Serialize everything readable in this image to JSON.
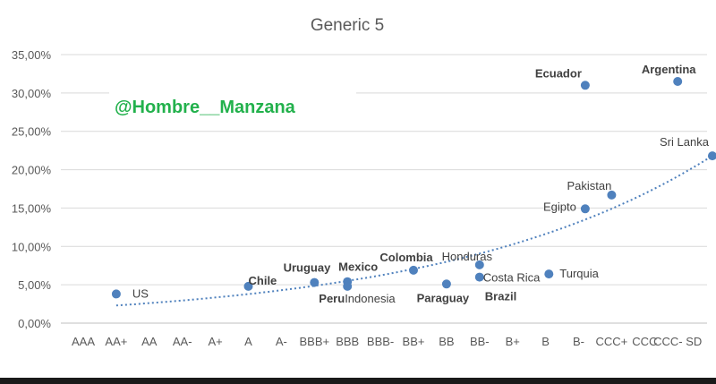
{
  "chart_data": {
    "type": "scatter",
    "title": "Generic 5",
    "watermark": "@Hombre__Manzana",
    "xlabel": "",
    "ylabel": "",
    "categories": [
      "AAA",
      "AA+",
      "AA",
      "AA-",
      "A+",
      "A",
      "A-",
      "BBB+",
      "BBB",
      "BBB-",
      "BB+",
      "BB",
      "BB-",
      "B+",
      "B",
      "B-",
      "CCC+",
      "CCC",
      "CCC- SD"
    ],
    "y_ticks": [
      "0,00%",
      "5,00%",
      "10,00%",
      "15,00%",
      "20,00%",
      "25,00%",
      "30,00%",
      "35,00%"
    ],
    "ylim": [
      0,
      35
    ],
    "grid": true,
    "points": [
      {
        "label": "US",
        "x": 1.0,
        "y": 3.8,
        "bold": false
      },
      {
        "label": "Chile",
        "x": 5.0,
        "y": 4.8,
        "bold": true
      },
      {
        "label": "Uruguay",
        "x": 7.0,
        "y": 5.3,
        "bold": true
      },
      {
        "label": "Mexico",
        "x": 8.0,
        "y": 5.4,
        "bold": true
      },
      {
        "label": "Peru",
        "x": 8.0,
        "y": 4.8,
        "bold": true
      },
      {
        "label": "Indonesia",
        "x": 8.0,
        "y": 4.8,
        "bold": false
      },
      {
        "label": "Colombia",
        "x": 10.0,
        "y": 6.9,
        "bold": true
      },
      {
        "label": "Paraguay",
        "x": 11.0,
        "y": 5.1,
        "bold": true
      },
      {
        "label": "Honduras",
        "x": 12.0,
        "y": 7.6,
        "bold": false
      },
      {
        "label": "Costa Rica",
        "x": 12.0,
        "y": 6.0,
        "bold": false
      },
      {
        "label": "Brazil",
        "x": 12.0,
        "y": 6.0,
        "bold": true
      },
      {
        "label": "Turquia",
        "x": 14.1,
        "y": 6.4,
        "bold": false
      },
      {
        "label": "Egipto",
        "x": 15.2,
        "y": 14.9,
        "bold": false
      },
      {
        "label": "Pakistan",
        "x": 16.0,
        "y": 16.7,
        "bold": false
      },
      {
        "label": "Ecuador",
        "x": 15.2,
        "y": 31.0,
        "bold": true
      },
      {
        "label": "Argentina",
        "x": 18.0,
        "y": 31.5,
        "bold": true
      },
      {
        "label": "Sri Lanka",
        "x": 19.05,
        "y": 21.8,
        "bold": false
      }
    ],
    "trendline": {
      "type": "exponential",
      "style": "dotted",
      "x_from": 1,
      "x_to": 19.05,
      "y_start": 2.3,
      "y_end": 21.8
    }
  },
  "colors": {
    "marker": "#4f81bd",
    "trendline": "#4f81bd",
    "grid": "#d9d9d9",
    "axis_text": "#595959",
    "watermark": "#22b14c",
    "label_text": "#404040"
  }
}
